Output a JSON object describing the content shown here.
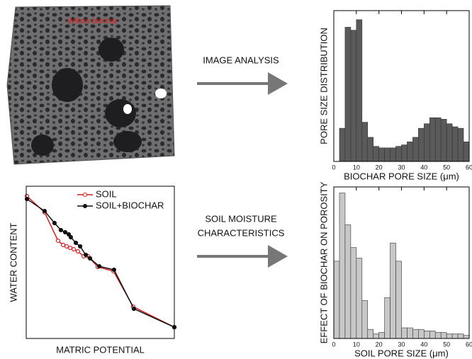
{
  "image_label": "Willow biochar",
  "arrow_labels": [
    [
      "IMAGE ANALYSIS"
    ],
    [
      "SOIL MOISTURE",
      "CHARACTERISTICS"
    ]
  ],
  "chart_data": [
    {
      "type": "histogram",
      "xlabel": "BIOCHAR PORE SIZE (μm)",
      "ylabel": "PORE SIZE DISTRIBUTION",
      "color": "#5a5a5a",
      "bins": [
        0,
        2.5,
        5,
        7.5,
        10,
        12.5,
        15,
        17.5,
        20,
        22.5,
        25,
        27.5,
        30,
        32.5,
        35,
        37.5,
        40,
        42.5,
        45,
        47.5,
        50,
        52.5,
        55,
        57.5,
        60
      ],
      "values": [
        0,
        22,
        89,
        87,
        94,
        26,
        16,
        10,
        9,
        9,
        9,
        10,
        11,
        13,
        16,
        22,
        25,
        29,
        29,
        28,
        25,
        23,
        22,
        13
      ],
      "xlim": [
        0,
        60
      ],
      "xticks": [
        0,
        10,
        20,
        30,
        40,
        50,
        60
      ],
      "ylim": [
        0,
        100
      ]
    },
    {
      "type": "line",
      "xlabel": "MATRIC POTENTIAL",
      "ylabel": "WATER CONTENT",
      "xlim": [
        0,
        100
      ],
      "ylim": [
        0,
        100
      ],
      "legend": "upper right",
      "series": [
        {
          "name": "SOIL",
          "color": "#d42020",
          "marker": "open",
          "x": [
            0.5,
            12.4,
            21.5,
            24.9,
            27.3,
            29.7,
            32.1,
            34.9,
            38.8,
            41.6,
            48.3,
            58.9,
            72.2,
            100
          ],
          "values": [
            93.5,
            82.8,
            64.2,
            61.4,
            60.5,
            59.5,
            58.6,
            57.2,
            54.0,
            54.0,
            47.0,
            44.2,
            20.9,
            7.4
          ]
        },
        {
          "name": "SOIL+BIOCHAR",
          "color": "#111111",
          "marker": "filled",
          "x": [
            0.5,
            12.4,
            19.1,
            23.4,
            26.3,
            28.7,
            30.1,
            33.5,
            36.4,
            40.2,
            43.1,
            49.3,
            59.3,
            72.7,
            100
          ],
          "values": [
            91.6,
            83.7,
            75.8,
            71.2,
            69.8,
            68.4,
            66.5,
            62.8,
            60.5,
            54.9,
            52.6,
            47.4,
            45.1,
            19.5,
            7.4
          ]
        }
      ]
    },
    {
      "type": "histogram",
      "xlabel": "SOIL PORE SIZE (μm)",
      "ylabel": "EFFECT OF BIOCHAR ON POROSITY",
      "color": "#c8c8c8",
      "bins": [
        0,
        2.5,
        5,
        7.5,
        10,
        12.5,
        15,
        17.5,
        20,
        22.5,
        25,
        27.5,
        30,
        32.5,
        35,
        37.5,
        40,
        42.5,
        45,
        47.5,
        50,
        52.5,
        55,
        57.5,
        60
      ],
      "values": [
        51,
        96,
        75,
        60,
        53,
        25,
        6,
        3,
        4,
        27,
        63,
        51,
        7,
        7,
        6,
        6,
        5,
        5,
        4,
        4,
        3,
        3,
        3,
        2
      ],
      "xlim": [
        0,
        60
      ],
      "xticks": [
        0,
        10,
        20,
        30,
        40,
        50,
        60
      ],
      "ylim": [
        0,
        100
      ]
    }
  ]
}
